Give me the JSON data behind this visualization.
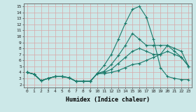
{
  "title": "",
  "xlabel": "Humidex (Indice chaleur)",
  "xlim": [
    -0.5,
    23.5
  ],
  "ylim": [
    1.5,
    15.5
  ],
  "xticks": [
    0,
    1,
    2,
    3,
    4,
    5,
    6,
    7,
    8,
    9,
    10,
    11,
    12,
    13,
    14,
    15,
    16,
    17,
    18,
    19,
    20,
    21,
    22,
    23
  ],
  "yticks": [
    2,
    3,
    4,
    5,
    6,
    7,
    8,
    9,
    10,
    11,
    12,
    13,
    14,
    15
  ],
  "bg_color": "#cce8e8",
  "grid_color": "#d8a8a8",
  "line_color": "#1a7a6a",
  "curves": [
    [
      4.0,
      3.7,
      2.6,
      3.0,
      3.3,
      3.3,
      3.1,
      2.5,
      2.5,
      2.5,
      3.8,
      5.2,
      7.0,
      9.5,
      12.2,
      14.5,
      15.0,
      13.2,
      9.5,
      4.8,
      3.3,
      3.0,
      2.8,
      2.8
    ],
    [
      4.0,
      3.7,
      2.6,
      3.0,
      3.3,
      3.3,
      3.1,
      2.5,
      2.5,
      2.5,
      3.8,
      4.2,
      5.3,
      6.8,
      8.5,
      10.5,
      9.5,
      8.5,
      8.5,
      8.5,
      8.5,
      7.5,
      6.5,
      5.0
    ],
    [
      4.0,
      3.7,
      2.6,
      3.0,
      3.3,
      3.3,
      3.1,
      2.5,
      2.5,
      2.5,
      3.8,
      4.0,
      4.5,
      5.5,
      6.5,
      7.5,
      8.0,
      7.5,
      7.0,
      7.0,
      8.5,
      8.0,
      7.5,
      5.0
    ],
    [
      4.0,
      3.7,
      2.6,
      3.0,
      3.3,
      3.3,
      3.1,
      2.5,
      2.5,
      2.5,
      3.8,
      3.8,
      4.0,
      4.3,
      4.8,
      5.3,
      5.5,
      6.0,
      6.5,
      7.0,
      7.5,
      7.0,
      6.5,
      5.0
    ]
  ],
  "marker": "+",
  "markersize": 3.0,
  "linewidth": 0.8,
  "tick_fontsize": 4.5,
  "xlabel_fontsize": 6.0
}
